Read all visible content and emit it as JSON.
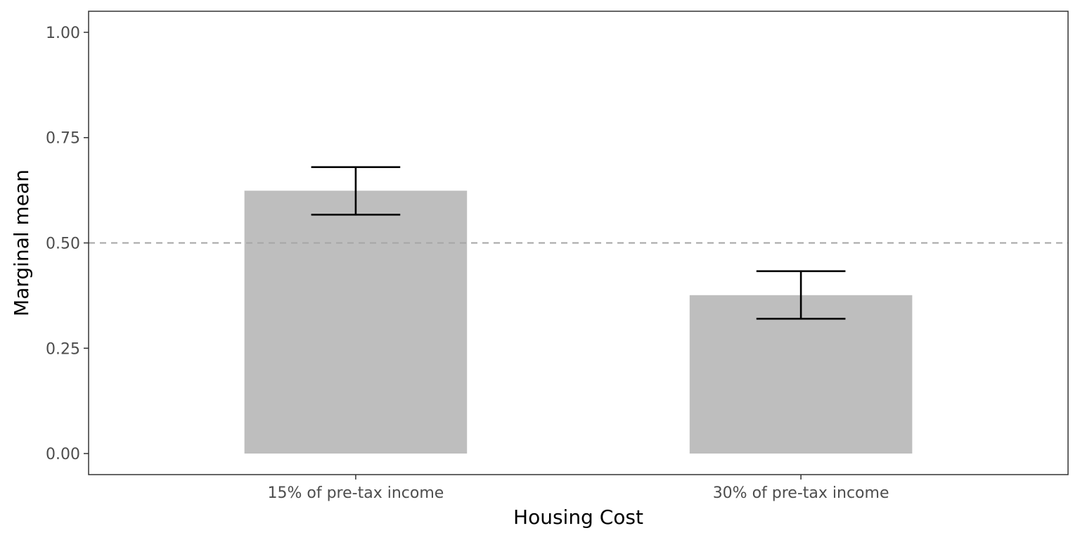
{
  "chart_data": {
    "type": "bar",
    "xlabel": "Housing Cost",
    "ylabel": "Marginal mean",
    "categories": [
      "15% of pre-tax income",
      "30% of pre-tax income"
    ],
    "values": [
      0.624,
      0.376
    ],
    "error_low": [
      0.567,
      0.32
    ],
    "error_high": [
      0.68,
      0.433
    ],
    "ylim": [
      -0.05,
      1.05
    ],
    "yticks": [
      0.0,
      0.25,
      0.5,
      0.75,
      1.0
    ],
    "ytick_labels": [
      "0.00",
      "0.25",
      "0.50",
      "0.75",
      "1.00"
    ],
    "reference_line": 0.5,
    "grid": false,
    "legend": "none",
    "colors": {
      "bar": "#bebebe",
      "error_bar": "#000000",
      "reference_line": "#a6a6a6",
      "panel_border": "#333333",
      "tick_label": "#4d4d4d",
      "axis_title": "#000000"
    }
  }
}
